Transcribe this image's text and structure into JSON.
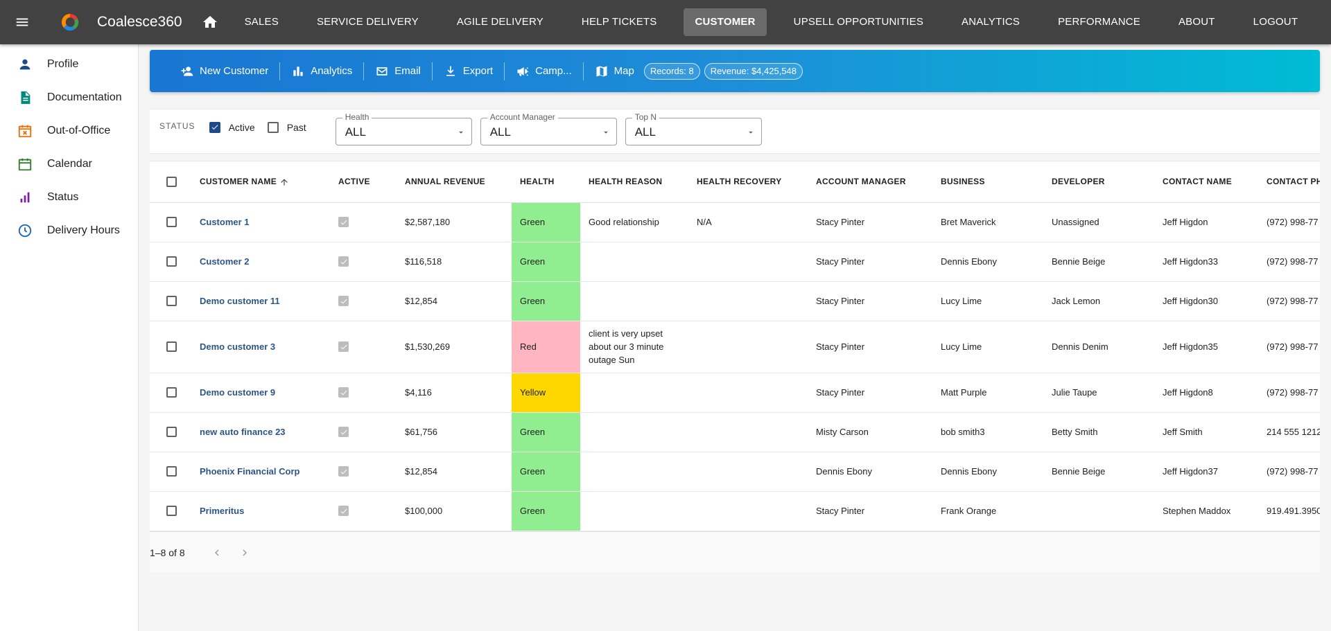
{
  "app": {
    "title": "Coalesce360",
    "nav": [
      "SALES",
      "SERVICE DELIVERY",
      "AGILE DELIVERY",
      "HELP TICKETS",
      "CUSTOMER",
      "UPSELL OPPORTUNITIES",
      "ANALYTICS",
      "PERFORMANCE",
      "ABOUT",
      "LOGOUT"
    ],
    "active_nav": "CUSTOMER"
  },
  "sidebar": {
    "items": [
      {
        "label": "Profile",
        "icon": "person-icon",
        "color": "#1e4a8a"
      },
      {
        "label": "Documentation",
        "icon": "document-icon",
        "color": "#00897b"
      },
      {
        "label": "Out-of-Office",
        "icon": "calendar-x-icon",
        "color": "#ef6c00"
      },
      {
        "label": "Calendar",
        "icon": "calendar-icon",
        "color": "#2e7d32"
      },
      {
        "label": "Status",
        "icon": "bar-chart-icon",
        "color": "#7b1fa2"
      },
      {
        "label": "Delivery Hours",
        "icon": "clock-icon",
        "color": "#1565c0"
      }
    ]
  },
  "toolbar": {
    "new_customer": "New Customer",
    "analytics": "Analytics",
    "email": "Email",
    "export": "Export",
    "campaign": "Camp...",
    "map": "Map",
    "records_chip": "Records: 8",
    "revenue_chip": "Revenue: $4,425,548"
  },
  "filters": {
    "status_label": "STATUS",
    "active_label": "Active",
    "active_checked": true,
    "past_label": "Past",
    "past_checked": false,
    "health": {
      "label": "Health",
      "value": "ALL"
    },
    "account_manager": {
      "label": "Account Manager",
      "value": "ALL"
    },
    "top_n": {
      "label": "Top N",
      "value": "ALL"
    }
  },
  "table": {
    "columns": [
      "CUSTOMER NAME",
      "ACTIVE",
      "ANNUAL REVENUE",
      "HEALTH",
      "HEALTH REASON",
      "HEALTH RECOVERY",
      "ACCOUNT MANAGER",
      "BUSINESS",
      "DEVELOPER",
      "CONTACT NAME",
      "CONTACT PH"
    ],
    "rows": [
      {
        "name": "Customer 1",
        "revenue": "$2,587,180",
        "health": "Green",
        "reason": "Good relationship",
        "recovery": "N/A",
        "manager": "Stacy Pinter",
        "business": "Bret Maverick",
        "developer": "Unassigned",
        "contact": "Jeff Higdon",
        "phone": "(972) 998-77"
      },
      {
        "name": "Customer 2",
        "revenue": "$116,518",
        "health": "Green",
        "reason": "",
        "recovery": "",
        "manager": "Stacy Pinter",
        "business": "Dennis Ebony",
        "developer": "Bennie Beige",
        "contact": "Jeff Higdon33",
        "phone": "(972) 998-77"
      },
      {
        "name": "Demo customer 11",
        "revenue": "$12,854",
        "health": "Green",
        "reason": "",
        "recovery": "",
        "manager": "Stacy Pinter",
        "business": "Lucy Lime",
        "developer": "Jack Lemon",
        "contact": "Jeff Higdon30",
        "phone": "(972) 998-77"
      },
      {
        "name": "Demo customer 3",
        "revenue": "$1,530,269",
        "health": "Red",
        "reason": "client is very upset about our 3 minute outage Sun",
        "recovery": "",
        "manager": "Stacy Pinter",
        "business": "Lucy Lime",
        "developer": "Dennis Denim",
        "contact": "Jeff Higdon35",
        "phone": "(972) 998-77"
      },
      {
        "name": "Demo customer 9",
        "revenue": "$4,116",
        "health": "Yellow",
        "reason": "",
        "recovery": "",
        "manager": "Stacy Pinter",
        "business": "Matt Purple",
        "developer": "Julie Taupe",
        "contact": "Jeff Higdon8",
        "phone": "(972) 998-77"
      },
      {
        "name": "new auto finance 23",
        "revenue": "$61,756",
        "health": "Green",
        "reason": "",
        "recovery": "",
        "manager": "Misty Carson",
        "business": "bob smith3",
        "developer": "Betty Smith",
        "contact": "Jeff Smith",
        "phone": "214 555 1212"
      },
      {
        "name": "Phoenix Financial Corp",
        "revenue": "$12,854",
        "health": "Green",
        "reason": "",
        "recovery": "",
        "manager": "Dennis Ebony",
        "business": "Dennis Ebony",
        "developer": "Bennie Beige",
        "contact": "Jeff Higdon37",
        "phone": "(972) 998-77"
      },
      {
        "name": "Primeritus",
        "revenue": "$100,000",
        "health": "Green",
        "reason": "",
        "recovery": "",
        "manager": "Stacy Pinter",
        "business": "Frank Orange",
        "developer": "",
        "contact": "Stephen Maddox",
        "phone": "919.491.3950"
      }
    ]
  },
  "pagination": {
    "label": "1–8 of 8"
  }
}
